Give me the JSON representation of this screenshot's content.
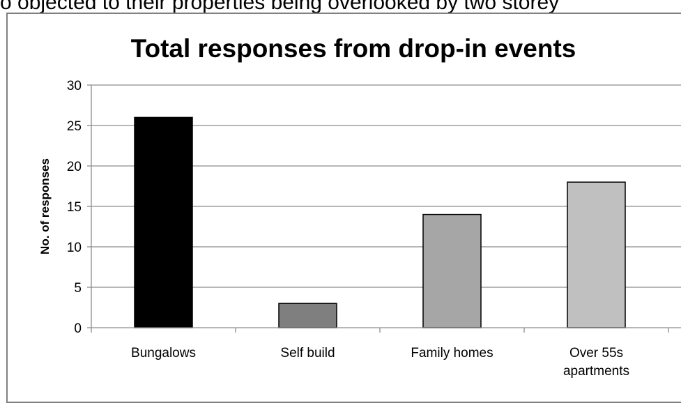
{
  "document": {
    "top_text": "o objected to their properties being overlooked by two storey"
  },
  "chart_data": {
    "type": "bar",
    "title": "Total responses from drop-in events",
    "xlabel": "",
    "ylabel": "No. of responses",
    "categories": [
      "Bungalows",
      "Self build",
      "Family homes",
      "Over 55s apartments"
    ],
    "category_lines": [
      [
        "Bungalows"
      ],
      [
        "Self build"
      ],
      [
        "Family homes"
      ],
      [
        "Over 55s",
        "apartments"
      ]
    ],
    "values": [
      26,
      3,
      14,
      18
    ],
    "colors": [
      "#000000",
      "#7f7f7f",
      "#a6a6a6",
      "#c0c0c0"
    ],
    "ylim": [
      0,
      30
    ],
    "yticks": [
      0,
      5,
      10,
      15,
      20,
      25,
      30
    ],
    "grid": true,
    "legend": "none"
  }
}
